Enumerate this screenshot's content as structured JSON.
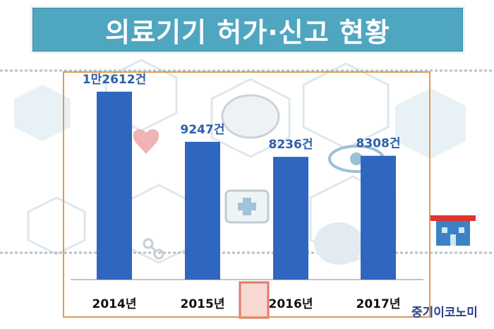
{
  "title": "의료기기 허가·신고 현황",
  "source_logo": "중기이코노미",
  "colors": {
    "banner": "#4fa6c0",
    "bar": "#2f66bf",
    "value_label": "#2d5fa8",
    "frame": "#e09a55"
  },
  "chart_data": {
    "type": "bar",
    "title": "의료기기 허가·신고 현황",
    "xlabel": "",
    "ylabel": "",
    "categories": [
      "2014년",
      "2015년",
      "2016년",
      "2017년"
    ],
    "values": [
      12612,
      9247,
      8236,
      8308
    ],
    "value_labels": [
      "1만2612건",
      "9247건",
      "8236건",
      "8308건"
    ],
    "ylim": [
      0,
      14500
    ],
    "grid": false,
    "legend": "none"
  }
}
